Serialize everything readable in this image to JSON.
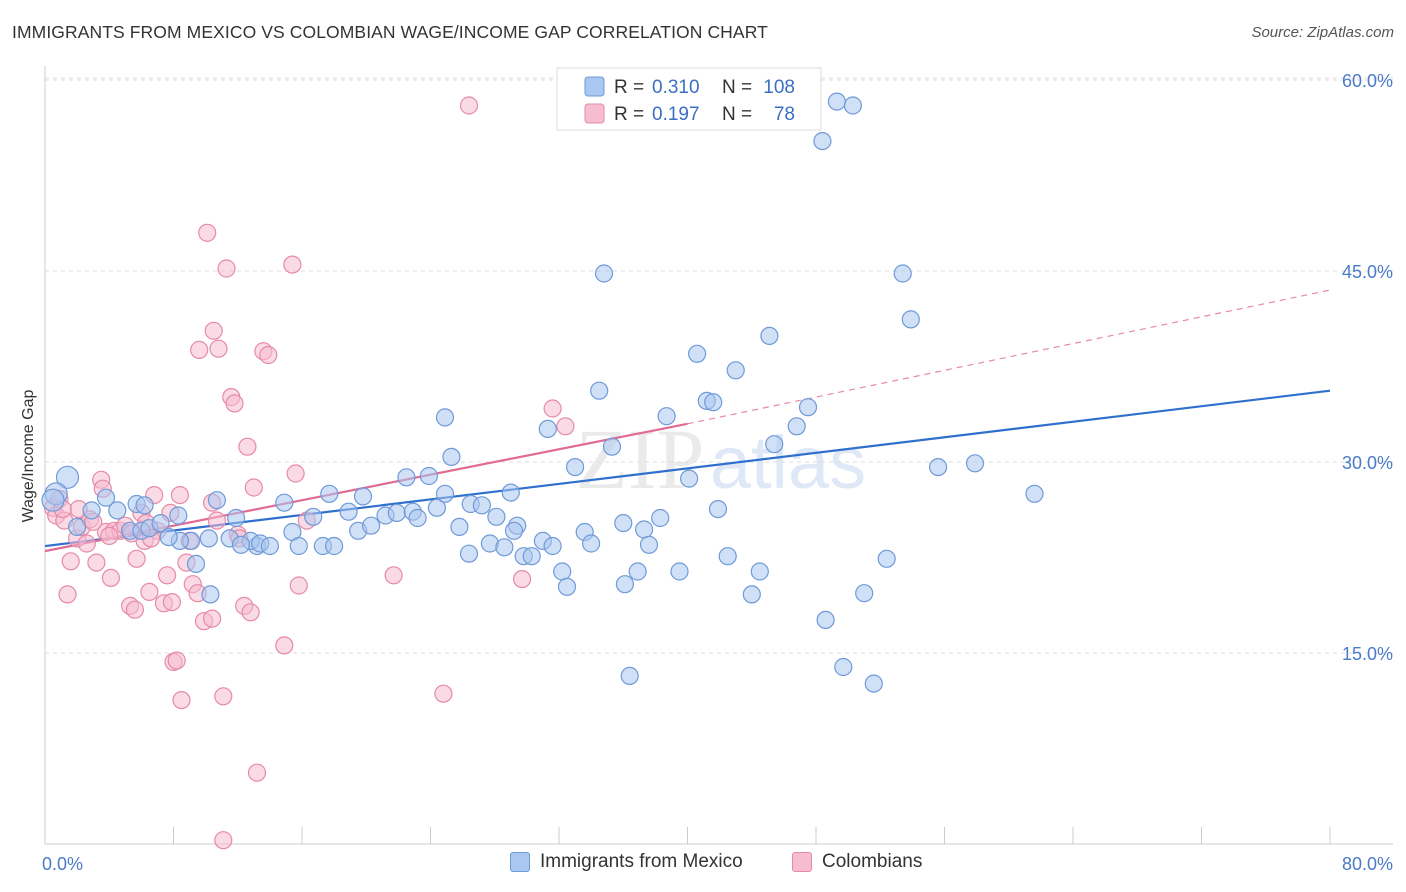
{
  "header": {
    "title": "IMMIGRANTS FROM MEXICO VS COLOMBIAN WAGE/INCOME GAP CORRELATION CHART",
    "source": "Source: ZipAtlas.com"
  },
  "watermark": {
    "zip": "ZIP",
    "atlas": "atlas"
  },
  "colors": {
    "blue_fill": "#a9c7f0",
    "blue_stroke": "#6f9ad8",
    "blue_line": "#2f6fce",
    "pink_fill": "#f6bccf",
    "pink_stroke": "#e68aa9",
    "pink_line": "#e06b93",
    "axis_label": "#4a7bc8",
    "grid": "#dddddd"
  },
  "chart_data": {
    "type": "scatter",
    "title": "IMMIGRANTS FROM MEXICO VS COLOMBIAN WAGE/INCOME GAP CORRELATION CHART",
    "xlabel": "",
    "ylabel": "Wage/Income Gap",
    "xlim": [
      0,
      80
    ],
    "ylim": [
      0,
      62
    ],
    "x_tick_labels": [
      "0.0%",
      "80.0%"
    ],
    "y_ticks": [
      15,
      30,
      45,
      60
    ],
    "y_tick_labels": [
      "15.0%",
      "30.0%",
      "45.0%",
      "60.0%"
    ],
    "grid": true,
    "legend_position": "top-center",
    "stats": [
      {
        "r_label": "R =",
        "r": "0.310",
        "n_label": "N =",
        "n": "108"
      },
      {
        "r_label": "R =",
        "r": "0.197",
        "n_label": "N =",
        "n": "78"
      }
    ],
    "series": [
      {
        "name": "Immigrants from Mexico",
        "color": "#a9c7f0",
        "trend": {
          "x": [
            0,
            80
          ],
          "y": [
            23.4,
            35.6
          ],
          "style": "solid"
        },
        "points": [
          [
            1.4,
            28.8
          ],
          [
            0.7,
            27.5
          ],
          [
            0.5,
            27.0
          ],
          [
            3.8,
            27.2
          ],
          [
            4.5,
            26.2
          ],
          [
            5.7,
            26.7
          ],
          [
            6.2,
            26.6
          ],
          [
            2.9,
            26.2
          ],
          [
            2.0,
            24.9
          ],
          [
            5.3,
            24.6
          ],
          [
            6.0,
            24.6
          ],
          [
            6.5,
            24.8
          ],
          [
            8.3,
            25.8
          ],
          [
            7.2,
            25.2
          ],
          [
            10.7,
            27.0
          ],
          [
            11.5,
            24.0
          ],
          [
            9.1,
            23.8
          ],
          [
            10.2,
            24.0
          ],
          [
            8.4,
            23.8
          ],
          [
            9.4,
            22.0
          ],
          [
            11.9,
            25.6
          ],
          [
            13.2,
            23.4
          ],
          [
            12.8,
            23.8
          ],
          [
            14.9,
            26.8
          ],
          [
            15.4,
            24.5
          ],
          [
            15.8,
            23.4
          ],
          [
            16.7,
            25.7
          ],
          [
            17.3,
            23.4
          ],
          [
            17.7,
            27.5
          ],
          [
            18.0,
            23.4
          ],
          [
            18.9,
            26.1
          ],
          [
            19.5,
            24.6
          ],
          [
            19.8,
            27.3
          ],
          [
            20.3,
            25.0
          ],
          [
            21.2,
            25.8
          ],
          [
            21.9,
            26.0
          ],
          [
            22.5,
            28.8
          ],
          [
            22.9,
            26.1
          ],
          [
            23.2,
            25.6
          ],
          [
            23.9,
            28.9
          ],
          [
            24.4,
            26.4
          ],
          [
            24.9,
            27.5
          ],
          [
            24.9,
            33.5
          ],
          [
            25.3,
            30.4
          ],
          [
            25.8,
            24.9
          ],
          [
            26.4,
            22.8
          ],
          [
            26.5,
            26.7
          ],
          [
            27.2,
            26.6
          ],
          [
            27.7,
            23.6
          ],
          [
            28.1,
            25.7
          ],
          [
            28.6,
            23.3
          ],
          [
            29.0,
            27.6
          ],
          [
            29.4,
            25.0
          ],
          [
            29.8,
            22.6
          ],
          [
            30.3,
            22.6
          ],
          [
            31.0,
            23.8
          ],
          [
            31.3,
            32.6
          ],
          [
            31.6,
            23.4
          ],
          [
            32.2,
            21.4
          ],
          [
            32.5,
            20.2
          ],
          [
            33.0,
            29.6
          ],
          [
            33.6,
            24.5
          ],
          [
            34.0,
            23.6
          ],
          [
            34.5,
            35.6
          ],
          [
            35.3,
            31.2
          ],
          [
            36.0,
            25.2
          ],
          [
            36.4,
            13.2
          ],
          [
            36.9,
            21.4
          ],
          [
            37.3,
            24.7
          ],
          [
            37.6,
            23.5
          ],
          [
            38.3,
            25.6
          ],
          [
            38.7,
            33.6
          ],
          [
            39.5,
            21.4
          ],
          [
            40.1,
            28.7
          ],
          [
            40.6,
            38.5
          ],
          [
            41.2,
            34.8
          ],
          [
            41.6,
            34.7
          ],
          [
            41.9,
            26.3
          ],
          [
            42.5,
            22.6
          ],
          [
            43.0,
            37.2
          ],
          [
            44.0,
            19.6
          ],
          [
            44.5,
            21.4
          ],
          [
            45.1,
            39.9
          ],
          [
            45.4,
            31.4
          ],
          [
            46.0,
            56.8
          ],
          [
            46.8,
            32.8
          ],
          [
            47.5,
            34.3
          ],
          [
            48.4,
            55.2
          ],
          [
            48.6,
            17.6
          ],
          [
            49.3,
            58.3
          ],
          [
            49.7,
            13.9
          ],
          [
            50.3,
            58.0
          ],
          [
            51.0,
            19.7
          ],
          [
            51.6,
            12.6
          ],
          [
            52.4,
            22.4
          ],
          [
            53.4,
            44.8
          ],
          [
            53.9,
            41.2
          ],
          [
            55.6,
            29.6
          ],
          [
            57.9,
            29.9
          ],
          [
            61.6,
            27.5
          ],
          [
            34.8,
            44.8
          ],
          [
            36.1,
            20.4
          ],
          [
            13.4,
            23.6
          ],
          [
            10.3,
            19.6
          ],
          [
            12.2,
            23.5
          ],
          [
            29.2,
            24.6
          ],
          [
            14.0,
            23.4
          ],
          [
            7.7,
            24.1
          ]
        ]
      },
      {
        "name": "Colombians",
        "color": "#f6bccf",
        "trend": {
          "x": [
            0,
            40
          ],
          "y": [
            23.0,
            33.0
          ],
          "style": "solid",
          "extended": {
            "x": [
              40,
              80
            ],
            "y": [
              33.0,
              43.5
            ],
            "style": "dashed"
          }
        },
        "points": [
          [
            0.5,
            26.4
          ],
          [
            0.7,
            25.8
          ],
          [
            0.9,
            27.1
          ],
          [
            1.2,
            25.4
          ],
          [
            1.6,
            22.2
          ],
          [
            1.4,
            19.6
          ],
          [
            2.0,
            24.0
          ],
          [
            2.3,
            24.9
          ],
          [
            2.6,
            23.6
          ],
          [
            2.8,
            25.5
          ],
          [
            3.2,
            22.1
          ],
          [
            3.5,
            28.6
          ],
          [
            3.6,
            27.9
          ],
          [
            3.8,
            24.5
          ],
          [
            4.1,
            20.9
          ],
          [
            4.3,
            24.6
          ],
          [
            4.7,
            24.6
          ],
          [
            5.0,
            25.0
          ],
          [
            5.3,
            18.7
          ],
          [
            5.6,
            18.4
          ],
          [
            5.7,
            22.4
          ],
          [
            6.0,
            26.0
          ],
          [
            6.2,
            23.8
          ],
          [
            6.5,
            19.8
          ],
          [
            6.8,
            27.4
          ],
          [
            7.0,
            24.6
          ],
          [
            7.4,
            18.9
          ],
          [
            7.6,
            21.1
          ],
          [
            7.9,
            19.0
          ],
          [
            8.0,
            14.3
          ],
          [
            8.4,
            27.4
          ],
          [
            8.5,
            11.3
          ],
          [
            8.8,
            22.1
          ],
          [
            9.2,
            20.4
          ],
          [
            9.5,
            19.7
          ],
          [
            9.6,
            38.8
          ],
          [
            9.9,
            17.5
          ],
          [
            10.1,
            48.0
          ],
          [
            10.4,
            17.7
          ],
          [
            10.5,
            40.3
          ],
          [
            10.7,
            25.4
          ],
          [
            10.8,
            38.9
          ],
          [
            11.1,
            11.6
          ],
          [
            11.3,
            45.2
          ],
          [
            11.6,
            35.1
          ],
          [
            11.8,
            34.6
          ],
          [
            12.0,
            24.3
          ],
          [
            12.4,
            18.7
          ],
          [
            12.6,
            31.2
          ],
          [
            12.8,
            18.2
          ],
          [
            13.0,
            28.0
          ],
          [
            13.2,
            5.6
          ],
          [
            13.6,
            38.7
          ],
          [
            13.9,
            38.4
          ],
          [
            14.9,
            15.6
          ],
          [
            15.4,
            45.5
          ],
          [
            15.6,
            29.1
          ],
          [
            15.8,
            20.3
          ],
          [
            16.3,
            25.4
          ],
          [
            21.7,
            21.1
          ],
          [
            24.8,
            11.8
          ],
          [
            26.4,
            58.0
          ],
          [
            29.7,
            20.8
          ],
          [
            31.6,
            34.2
          ],
          [
            32.4,
            32.8
          ],
          [
            11.1,
            0.3
          ],
          [
            6.3,
            25.2
          ],
          [
            3.0,
            25.3
          ],
          [
            4.0,
            24.2
          ],
          [
            7.8,
            26.0
          ],
          [
            12.1,
            24.0
          ],
          [
            10.4,
            26.8
          ],
          [
            9.0,
            23.8
          ],
          [
            2.1,
            26.3
          ],
          [
            1.1,
            26.3
          ],
          [
            5.4,
            24.4
          ],
          [
            6.6,
            24.0
          ],
          [
            8.2,
            14.4
          ]
        ]
      }
    ]
  },
  "legend_bottom": [
    {
      "label": "Immigrants from Mexico"
    },
    {
      "label": "Colombians"
    }
  ]
}
